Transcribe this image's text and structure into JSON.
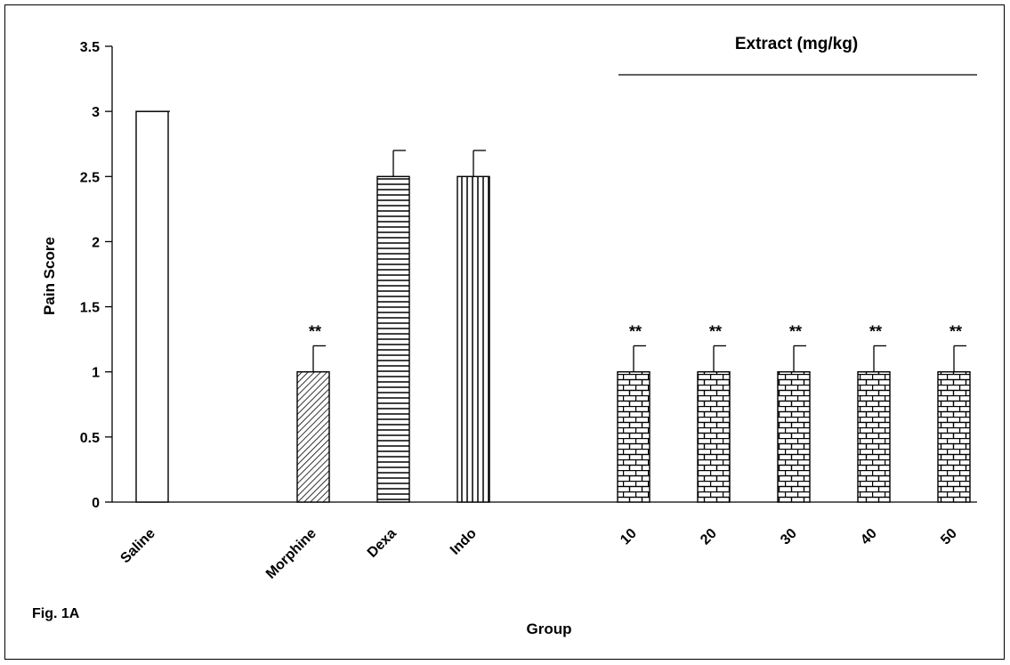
{
  "figure_label": "Fig. 1A",
  "chart_data": {
    "type": "bar",
    "title": "",
    "xlabel": "Group",
    "ylabel": "Pain Score",
    "ylim": [
      0,
      3.5
    ],
    "yticks": [
      "0",
      "0.5",
      "1",
      "1.5",
      "2",
      "2.5",
      "3",
      "3.5"
    ],
    "grid": false,
    "legend": "none",
    "categories": [
      "Saline",
      "Morphine",
      "Dexa",
      "Indo",
      "10",
      "20",
      "30",
      "40",
      "50"
    ],
    "values": [
      3.0,
      1.0,
      2.5,
      2.5,
      1.0,
      1.0,
      1.0,
      1.0,
      1.0
    ],
    "error": [
      0.0,
      0.2,
      0.2,
      0.2,
      0.2,
      0.2,
      0.2,
      0.2,
      0.2
    ],
    "significance": [
      "",
      "**",
      "",
      "",
      "**",
      "**",
      "**",
      "**",
      "**"
    ],
    "fill_patterns": [
      "none",
      "diagonal",
      "horizontal",
      "vertical",
      "brick",
      "brick",
      "brick",
      "brick",
      "brick"
    ],
    "annotation": "Extract (mg/kg)"
  }
}
